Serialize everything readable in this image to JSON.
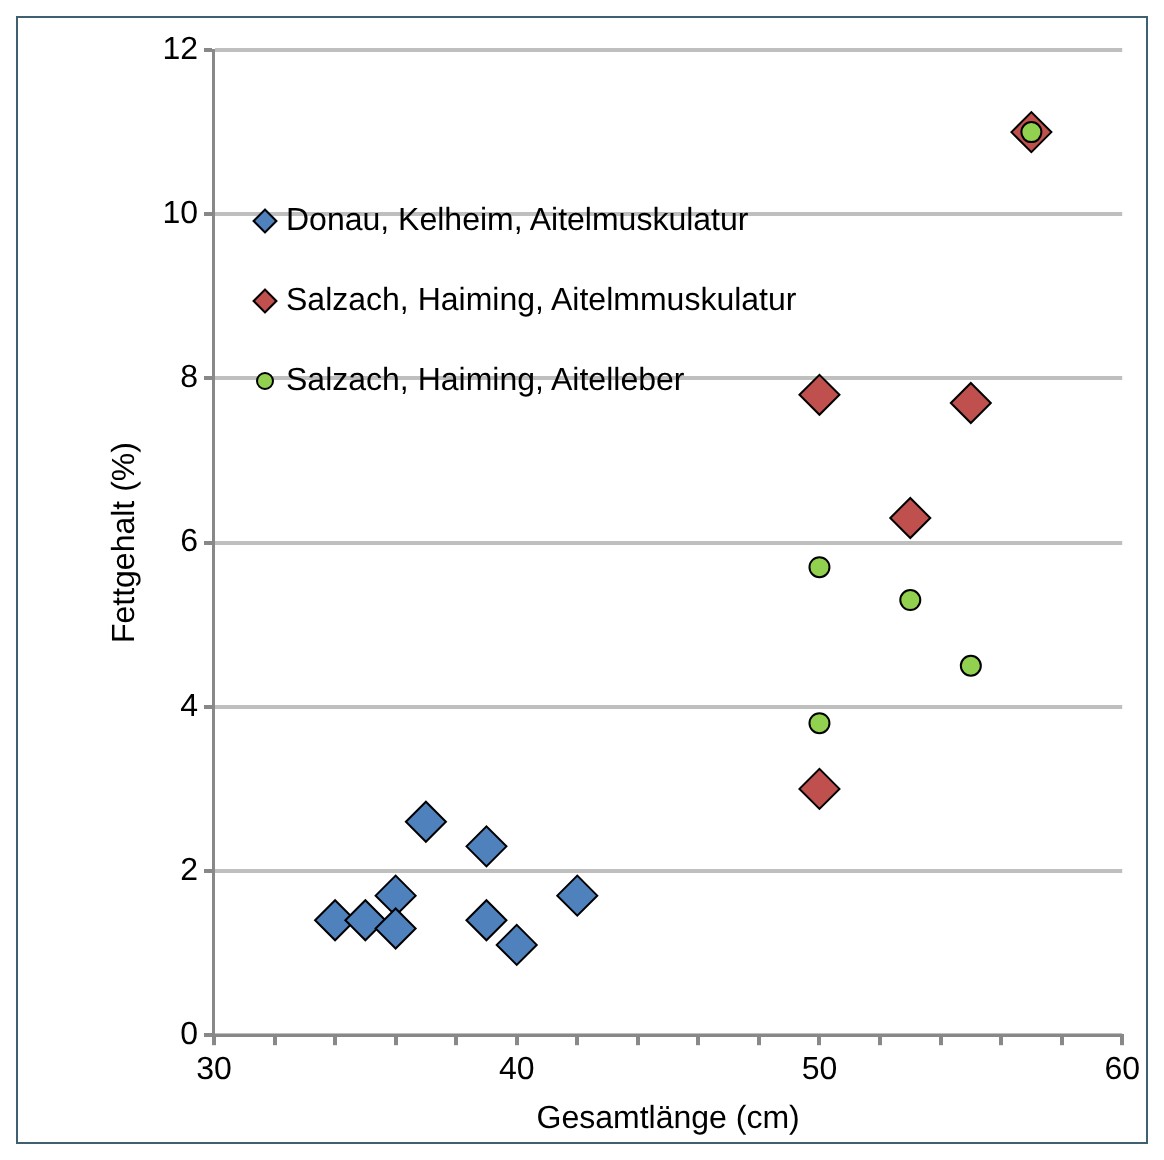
{
  "chart_data": {
    "type": "scatter",
    "xlabel": "Gesamtlänge (cm)",
    "ylabel": "Fettgehalt (%)",
    "xlim": [
      30,
      60
    ],
    "xticks": [
      30,
      {
        "value": 32,
        "label": null
      },
      {
        "value": 34,
        "label": null
      },
      {
        "value": 36,
        "label": null
      },
      {
        "value": 38,
        "label": null
      },
      40,
      {
        "value": 42,
        "label": null
      },
      {
        "value": 44,
        "label": null
      },
      {
        "value": 46,
        "label": null
      },
      {
        "value": 48,
        "label": null
      },
      50,
      {
        "value": 52,
        "label": null
      },
      {
        "value": 54,
        "label": null
      },
      {
        "value": 56,
        "label": null
      },
      {
        "value": 58,
        "label": null
      },
      60
    ],
    "ylim": [
      0,
      12
    ],
    "yticks": [
      0,
      2,
      4,
      6,
      8,
      10,
      12
    ],
    "grid": "y",
    "legend": "top left",
    "series": [
      {
        "name": "Donau, Kelheim, Aitelmuskulatur",
        "color": "#4f81bd",
        "marker": "diamond",
        "x": [
          34,
          35,
          36,
          36,
          37,
          39,
          39,
          40,
          42
        ],
        "values": [
          1.4,
          1.4,
          1.7,
          1.3,
          2.6,
          2.3,
          1.4,
          1.1,
          1.7
        ]
      },
      {
        "name": "Salzach, Haiming, Aitelmmuskulatur",
        "color": "#c0504d",
        "marker": "diamond",
        "x": [
          50,
          50,
          53,
          55,
          57
        ],
        "values": [
          7.8,
          3.0,
          6.3,
          7.7,
          11.0
        ]
      },
      {
        "name": "Salzach, Haiming, Aitelleber",
        "color": "#92d050",
        "marker": "circle",
        "x": [
          50,
          50,
          53,
          55,
          57
        ],
        "values": [
          5.7,
          3.8,
          5.3,
          4.5,
          11.0
        ]
      }
    ]
  }
}
